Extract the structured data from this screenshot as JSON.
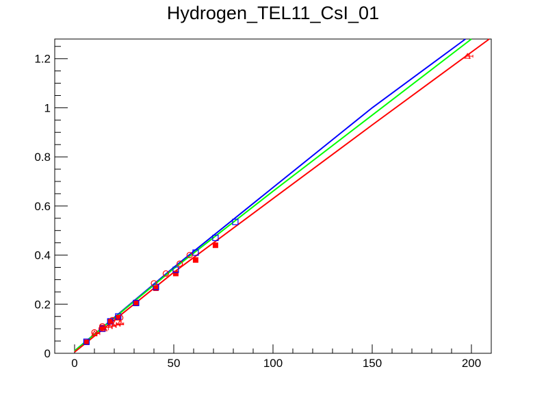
{
  "chart_data": {
    "type": "scatter",
    "title": "Hydrogen_TEL11_CsI_01",
    "xlabel": "",
    "ylabel": "",
    "xlim": [
      -10,
      210
    ],
    "ylim": [
      0,
      1.28
    ],
    "x_ticks": [
      0,
      50,
      100,
      150,
      200
    ],
    "x_tick_labels": [
      "0",
      "50",
      "100",
      "150",
      "200"
    ],
    "y_ticks": [
      0,
      0.2,
      0.4,
      0.6,
      0.8,
      1.0,
      1.2
    ],
    "y_tick_labels": [
      "0",
      "0.2",
      "0.4",
      "0.6",
      "0.8",
      "1",
      "1.2"
    ],
    "grid": false,
    "legend": "none",
    "lines": [
      {
        "color": "#0000ff",
        "x": [
          0,
          50,
          100,
          150,
          197
        ],
        "y": [
          0.01,
          0.35,
          0.675,
          1.0,
          1.28
        ]
      },
      {
        "color": "#00ff00",
        "x": [
          0,
          50,
          100,
          150,
          200
        ],
        "y": [
          0.01,
          0.345,
          0.66,
          0.97,
          1.28
        ]
      },
      {
        "color": "#ff0000",
        "x": [
          0,
          50,
          100,
          150,
          209
        ],
        "y": [
          0.005,
          0.33,
          0.63,
          0.93,
          1.28
        ]
      }
    ],
    "series": [
      {
        "marker": "filled-square",
        "color": "#ff0000",
        "x": [
          6,
          14,
          18,
          22,
          31,
          41,
          51,
          61,
          71
        ],
        "y": [
          0.045,
          0.105,
          0.13,
          0.145,
          0.205,
          0.265,
          0.325,
          0.38,
          0.44
        ]
      },
      {
        "marker": "open-square",
        "color": "#0000ff",
        "x": [
          6,
          14,
          18,
          22,
          31,
          41,
          51,
          61,
          71,
          81
        ],
        "y": [
          0.047,
          0.1,
          0.13,
          0.15,
          0.205,
          0.27,
          0.34,
          0.41,
          0.47,
          0.535
        ]
      },
      {
        "marker": "open-circle",
        "color": "#ff0000",
        "x": [
          10,
          14,
          19,
          23,
          40,
          46,
          53,
          58
        ],
        "y": [
          0.085,
          0.11,
          0.135,
          0.145,
          0.285,
          0.325,
          0.365,
          0.4
        ]
      },
      {
        "marker": "open-triangle",
        "color": "#ff0000",
        "x": [
          10,
          15,
          19,
          23,
          198
        ],
        "y": [
          0.08,
          0.1,
          0.12,
          0.125,
          1.21
        ]
      },
      {
        "marker": "cross-errorbar",
        "color": "#ff0000",
        "x": [
          11,
          14,
          17,
          19,
          21,
          23,
          199
        ],
        "y": [
          0.08,
          0.1,
          0.105,
          0.11,
          0.115,
          0.12,
          1.21
        ]
      }
    ]
  }
}
